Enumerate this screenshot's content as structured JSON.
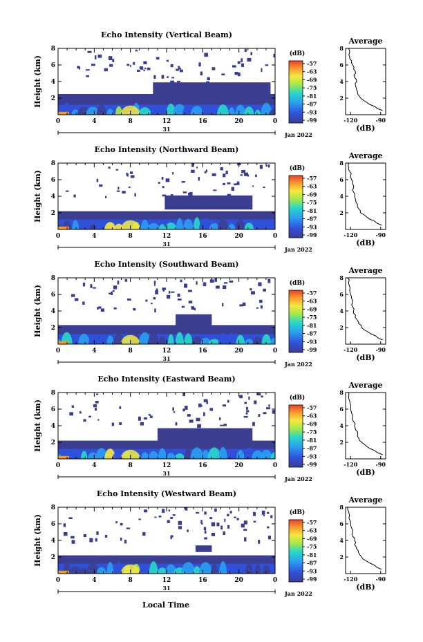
{
  "chart_data": [
    {
      "type": "heatmap",
      "title": "Echo Intensity (Vertical Beam)",
      "ylabel": "Height (km)",
      "x_ticks": [
        "0",
        "4",
        "8",
        "12",
        "16",
        "20",
        "0"
      ],
      "date_label": "31",
      "month_label": "Jan 2022",
      "ylim": [
        0,
        8
      ],
      "y_ticks": [
        "2",
        "4",
        "6",
        "8"
      ],
      "colorbar": {
        "unit": "(dB)",
        "ticks": [
          "-57",
          "-63",
          "-69",
          "-75",
          "-81",
          "-87",
          "-93",
          "-99"
        ]
      },
      "profile": {
        "title": "Average",
        "xlabel": "(dB)",
        "x_ticks": [
          "-120",
          "-90"
        ],
        "xlim": [
          -125,
          -85
        ],
        "heights": [
          0.5,
          1,
          1.5,
          2,
          2.5,
          3,
          3.5,
          4,
          4.5,
          5,
          5.5,
          6,
          6.5,
          7,
          7.5,
          8
        ],
        "values": [
          -88,
          -96,
          -104,
          -110,
          -113,
          -114,
          -115,
          -114,
          -116,
          -115,
          -117,
          -118,
          -119,
          -121,
          -121,
          -122
        ]
      }
    },
    {
      "type": "heatmap",
      "title": "Echo Intensity (Northward Beam)",
      "ylabel": "Height (km)",
      "x_ticks": [
        "0",
        "4",
        "8",
        "12",
        "16",
        "20",
        "0"
      ],
      "date_label": "31",
      "month_label": "Jan 2022",
      "ylim": [
        0,
        8
      ],
      "y_ticks": [
        "2",
        "4",
        "6",
        "8"
      ],
      "colorbar": {
        "unit": "(dB)",
        "ticks": [
          "-57",
          "-63",
          "-69",
          "-75",
          "-81",
          "-87",
          "-93",
          "-99"
        ]
      },
      "profile": {
        "title": "Average",
        "xlabel": "(dB)",
        "x_ticks": [
          "-120",
          "-90"
        ],
        "xlim": [
          -125,
          -85
        ],
        "heights": [
          0.5,
          1,
          1.5,
          2,
          2.5,
          3,
          3.5,
          4,
          4.5,
          5,
          5.5,
          6,
          6.5,
          7,
          7.5,
          8
        ],
        "values": [
          -89,
          -96,
          -104,
          -110,
          -112,
          -113,
          -115,
          -116,
          -117,
          -117,
          -118,
          -119,
          -120,
          -121,
          -122,
          -122
        ]
      }
    },
    {
      "type": "heatmap",
      "title": "Echo Intensity (Southward Beam)",
      "ylabel": "Height (km)",
      "x_ticks": [
        "0",
        "4",
        "8",
        "12",
        "16",
        "20",
        "0"
      ],
      "date_label": "31",
      "month_label": "Jan 2022",
      "ylim": [
        0,
        8
      ],
      "y_ticks": [
        "2",
        "4",
        "6",
        "8"
      ],
      "colorbar": {
        "unit": "(dB)",
        "ticks": [
          "-57",
          "-63",
          "-69",
          "-75",
          "-81",
          "-87",
          "-93",
          "-99"
        ]
      },
      "profile": {
        "title": "Average",
        "xlabel": "(dB)",
        "x_ticks": [
          "-120",
          "-90"
        ],
        "xlim": [
          -125,
          -85
        ],
        "heights": [
          0.5,
          1,
          1.5,
          2,
          2.5,
          3,
          3.5,
          4,
          4.5,
          5,
          5.5,
          6,
          6.5,
          7,
          7.5,
          8
        ],
        "values": [
          -88,
          -95,
          -103,
          -109,
          -112,
          -114,
          -115,
          -117,
          -118,
          -118,
          -119,
          -120,
          -121,
          -121,
          -122,
          -123
        ]
      }
    },
    {
      "type": "heatmap",
      "title": "Echo Intensity (Eastward Beam)",
      "ylabel": "Height (km)",
      "x_ticks": [
        "0",
        "4",
        "8",
        "12",
        "16",
        "20",
        "0"
      ],
      "date_label": "31",
      "month_label": "Jan 2022",
      "ylim": [
        0,
        8
      ],
      "y_ticks": [
        "2",
        "4",
        "6",
        "8"
      ],
      "colorbar": {
        "unit": "(dB)",
        "ticks": [
          "-57",
          "-63",
          "-69",
          "-75",
          "-81",
          "-87",
          "-93",
          "-99"
        ]
      },
      "profile": {
        "title": "Average",
        "xlabel": "(dB)",
        "x_ticks": [
          "-120",
          "-90"
        ],
        "xlim": [
          -125,
          -85
        ],
        "heights": [
          0.5,
          1,
          1.5,
          2,
          2.5,
          3,
          3.5,
          4,
          4.5,
          5,
          5.5,
          6,
          6.5,
          7,
          7.5,
          8
        ],
        "values": [
          -88,
          -96,
          -104,
          -109,
          -112,
          -113,
          -115,
          -116,
          -117,
          -118,
          -119,
          -120,
          -120,
          -121,
          -122,
          -122
        ]
      }
    },
    {
      "type": "heatmap",
      "title": "Echo Intensity (Westward Beam)",
      "ylabel": "Height (km)",
      "x_ticks": [
        "0",
        "4",
        "8",
        "12",
        "16",
        "20",
        "0"
      ],
      "date_label": "31",
      "month_label": "Jan 2022",
      "ylim": [
        0,
        8
      ],
      "y_ticks": [
        "2",
        "4",
        "6",
        "8"
      ],
      "colorbar": {
        "unit": "(dB)",
        "ticks": [
          "-57",
          "-63",
          "-69",
          "-75",
          "-81",
          "-87",
          "-93",
          "-99"
        ]
      },
      "profile": {
        "title": "Average",
        "xlabel": "(dB)",
        "x_ticks": [
          "-120",
          "-90"
        ],
        "xlim": [
          -125,
          -85
        ],
        "heights": [
          0.5,
          1,
          1.5,
          2,
          2.5,
          3,
          3.5,
          4,
          4.5,
          5,
          5.5,
          6,
          6.5,
          7,
          7.5,
          8
        ],
        "values": [
          -89,
          -96,
          -104,
          -109,
          -112,
          -114,
          -116,
          -116,
          -118,
          -118,
          -119,
          -120,
          -121,
          -121,
          -122,
          -123
        ]
      }
    }
  ],
  "figure": {
    "xlabel": "Local Time"
  }
}
